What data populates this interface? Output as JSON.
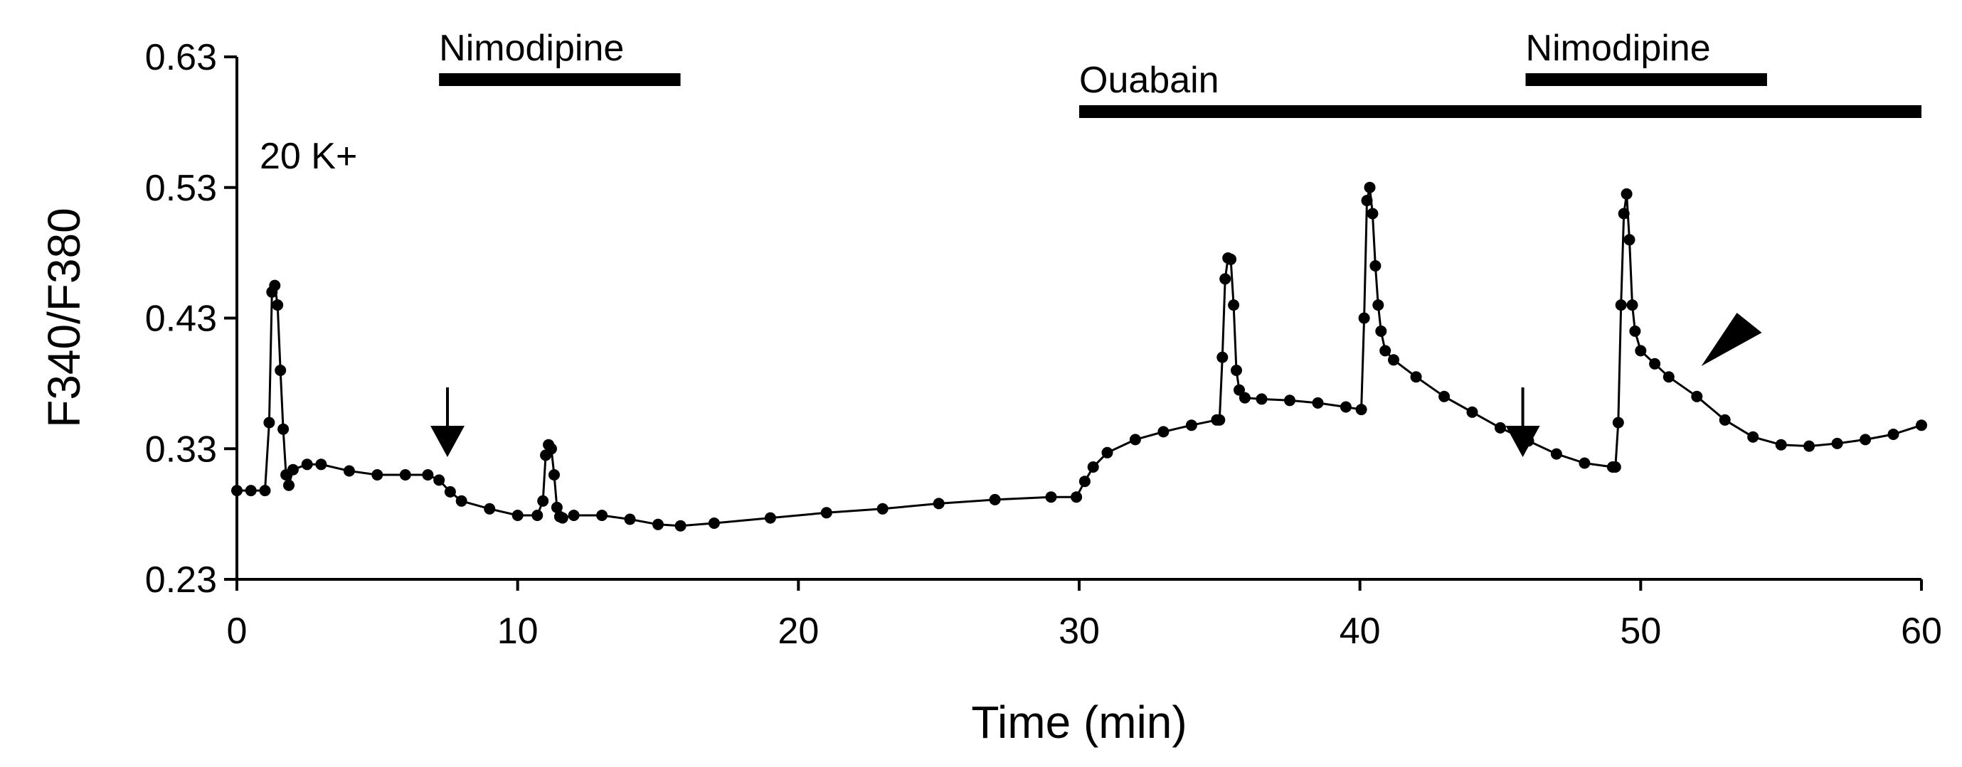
{
  "chart_data": {
    "type": "line",
    "xlabel": "Time (min)",
    "ylabel": "F340/F380",
    "xlim": [
      0,
      60
    ],
    "ylim": [
      0.23,
      0.63
    ],
    "xticks": [
      0,
      10,
      20,
      30,
      40,
      50,
      60
    ],
    "yticks": [
      "0.23",
      "0.33",
      "0.43",
      "0.53",
      "0.63"
    ],
    "grid": false,
    "annotations": {
      "label_k": "20 K+",
      "bars": [
        {
          "label": "Nimodipine",
          "x_start": 7.2,
          "x_end": 15.8
        },
        {
          "label": "Ouabain",
          "x_start": 30.0,
          "x_end": 60.0
        },
        {
          "label": "Nimodipine",
          "x_start": 45.9,
          "x_end": 54.5
        }
      ],
      "arrows_x": [
        7.5,
        45.8
      ],
      "arrowhead_x": 53.3
    },
    "series": [
      {
        "x": [
          0,
          0.5,
          1.0,
          1.15,
          1.25,
          1.35,
          1.45,
          1.55,
          1.65,
          1.75,
          1.85,
          2.0,
          2.5,
          3.0,
          4.0,
          5.0,
          6.0,
          6.8,
          7.2,
          7.6,
          8.0,
          9.0,
          10.0,
          10.7,
          10.9,
          11.0,
          11.1,
          11.2,
          11.3,
          11.4,
          11.5,
          11.6,
          12.0,
          13.0,
          14.0,
          15.0,
          15.8,
          17.0,
          19.0,
          21.0,
          23.0,
          25.0,
          27.0,
          29.0,
          29.9,
          30.2,
          30.5,
          31.0,
          32.0,
          33.0,
          34.0,
          34.9,
          35.0,
          35.1,
          35.2,
          35.3,
          35.4,
          35.5,
          35.6,
          35.7,
          35.9,
          36.5,
          37.5,
          38.5,
          39.5,
          40.05,
          40.15,
          40.25,
          40.35,
          40.45,
          40.55,
          40.65,
          40.75,
          40.9,
          41.2,
          42.0,
          43.0,
          44.0,
          45.0,
          46.0,
          47.0,
          48.0,
          49.0,
          49.1,
          49.2,
          49.3,
          49.4,
          49.5,
          49.6,
          49.7,
          49.8,
          50.0,
          50.5,
          51.0,
          52.0,
          53.0,
          54.0,
          55.0,
          56.0,
          57.0,
          58.0,
          59.0,
          60.0
        ],
        "y": [
          0.298,
          0.298,
          0.298,
          0.35,
          0.45,
          0.455,
          0.44,
          0.39,
          0.345,
          0.31,
          0.302,
          0.314,
          0.318,
          0.318,
          0.313,
          0.31,
          0.31,
          0.31,
          0.306,
          0.297,
          0.29,
          0.284,
          0.279,
          0.279,
          0.29,
          0.325,
          0.333,
          0.33,
          0.31,
          0.285,
          0.278,
          0.277,
          0.279,
          0.279,
          0.276,
          0.272,
          0.271,
          0.273,
          0.277,
          0.281,
          0.284,
          0.288,
          0.291,
          0.293,
          0.293,
          0.305,
          0.316,
          0.327,
          0.337,
          0.343,
          0.348,
          0.352,
          0.352,
          0.4,
          0.46,
          0.476,
          0.475,
          0.44,
          0.39,
          0.375,
          0.369,
          0.368,
          0.367,
          0.365,
          0.362,
          0.36,
          0.43,
          0.52,
          0.53,
          0.51,
          0.47,
          0.44,
          0.42,
          0.405,
          0.398,
          0.385,
          0.37,
          0.358,
          0.346,
          0.336,
          0.326,
          0.319,
          0.316,
          0.316,
          0.35,
          0.44,
          0.51,
          0.525,
          0.49,
          0.44,
          0.42,
          0.405,
          0.395,
          0.385,
          0.37,
          0.352,
          0.339,
          0.333,
          0.332,
          0.334,
          0.337,
          0.341,
          0.348
        ]
      }
    ]
  }
}
